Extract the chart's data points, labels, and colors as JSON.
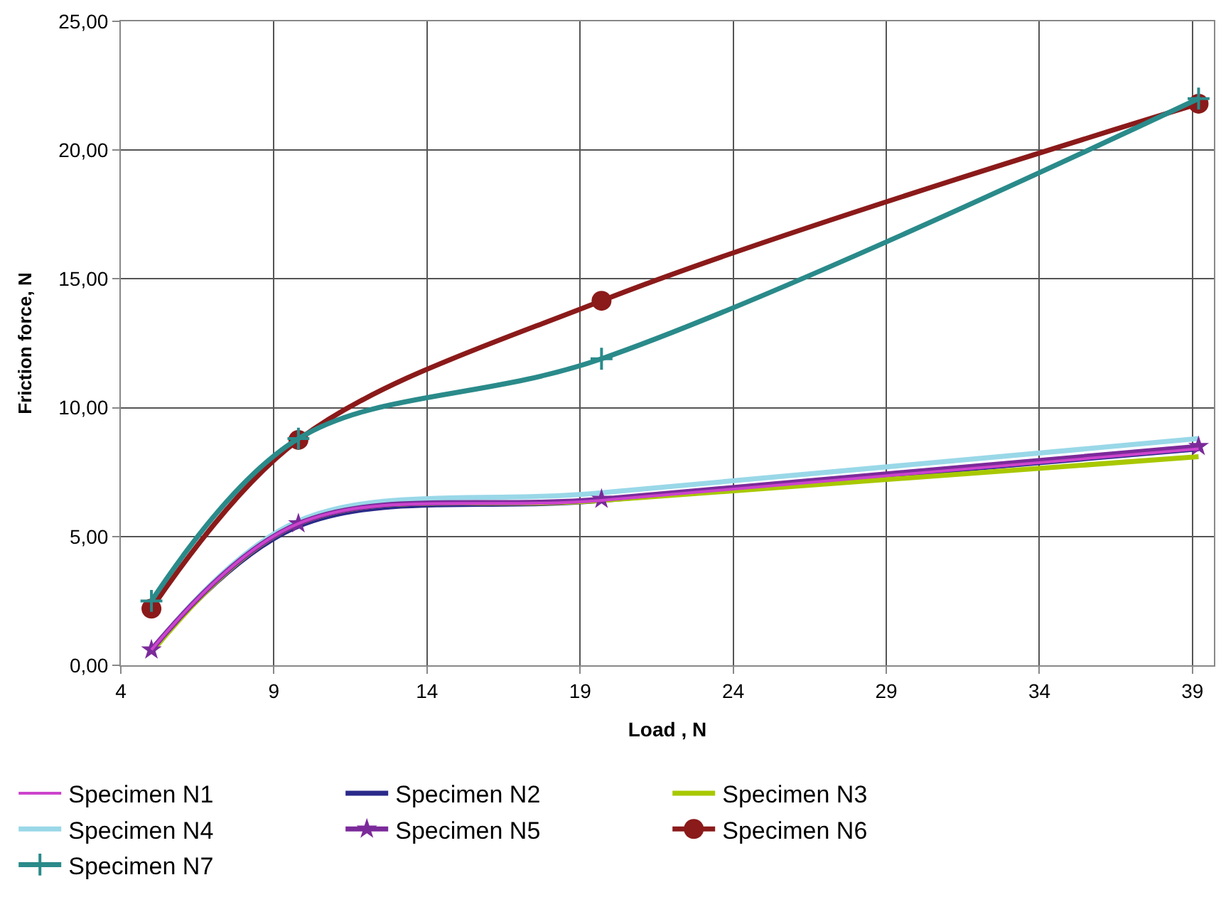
{
  "chart_data": {
    "type": "line",
    "xlabel": "Load , N",
    "ylabel": "Friction force, N",
    "xlim": [
      4,
      39.7
    ],
    "xticks": [
      4,
      9,
      14,
      19,
      24,
      29,
      34,
      39
    ],
    "ylim": [
      0,
      25
    ],
    "yticks": [
      {
        "value": 0,
        "label": "0,00"
      },
      {
        "value": 5,
        "label": "5,00"
      },
      {
        "value": 10,
        "label": "10,00"
      },
      {
        "value": 15,
        "label": "15,00"
      },
      {
        "value": 20,
        "label": "20,00"
      },
      {
        "value": 25,
        "label": "25,00"
      }
    ],
    "grid": true,
    "legend": "bottom",
    "x": [
      5,
      9.8,
      19.7,
      39.2
    ],
    "series": [
      {
        "name": "Specimen N1",
        "color": "#cc44cc",
        "values": [
          0.6,
          5.5,
          6.4,
          8.4
        ],
        "marker": "none"
      },
      {
        "name": "Specimen N2",
        "color": "#2a2a8a",
        "values": [
          0.6,
          5.4,
          6.4,
          8.4
        ],
        "marker": "none"
      },
      {
        "name": "Specimen N3",
        "color": "#a8c800",
        "values": [
          0.5,
          5.5,
          6.4,
          8.1
        ],
        "marker": "none"
      },
      {
        "name": "Specimen N4",
        "color": "#99d8e8",
        "values": [
          0.6,
          5.6,
          6.7,
          8.8
        ],
        "marker": "none"
      },
      {
        "name": "Specimen N5",
        "color": "#7b2a9a",
        "values": [
          0.6,
          5.5,
          6.45,
          8.5
        ],
        "marker": "star"
      },
      {
        "name": "Specimen N6",
        "color": "#8b1a1a",
        "values": [
          2.2,
          8.75,
          14.15,
          21.8
        ],
        "marker": "circle"
      },
      {
        "name": "Specimen N7",
        "color": "#2a8a8a",
        "values": [
          2.5,
          8.8,
          11.9,
          22.0
        ],
        "marker": "cross"
      }
    ]
  }
}
